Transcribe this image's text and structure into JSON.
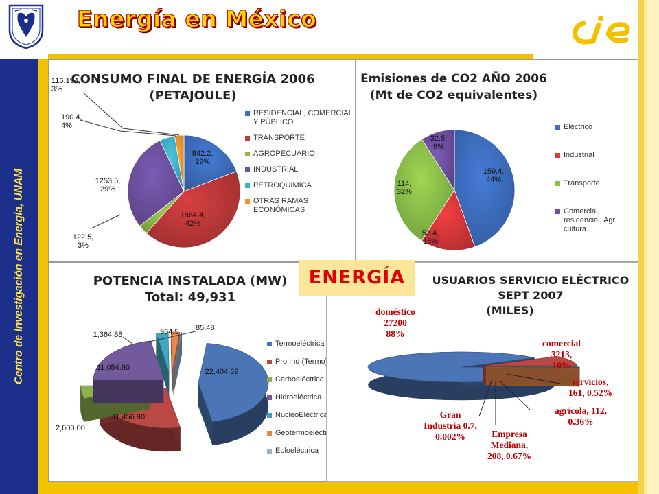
{
  "slide": {
    "title": "Energía en México",
    "side_text": "Centro de Investigación en Energía, UNAM",
    "badge": "ENERGÍA"
  },
  "colors": {
    "navy": "#1c2f8a",
    "gold": "#f2c200",
    "title_red": "#b20000"
  },
  "chart_data": [
    {
      "id": "consumo",
      "type": "pie",
      "title": "CONSUMO FINAL DE ENERGÍA 2006",
      "subtitle": "(PETAJOULE)",
      "legend_position": "right",
      "slices": [
        {
          "name": "RESIDENCIAL, COMERCIAL Y PÚBLICO",
          "value": 842.2,
          "label": "842.2,\n19%",
          "color": "#3e6fc1"
        },
        {
          "name": "TRANSPORTE",
          "value": 1864.4,
          "label": "1864.4,\n42%",
          "color": "#c0393b"
        },
        {
          "name": "AGROPECUARIO",
          "value": 122.5,
          "label": "122.5,\n3%",
          "color": "#8cb849"
        },
        {
          "name": "INDUSTRIAL",
          "value": 1253.5,
          "label": "1253.5,\n29%",
          "color": "#6f51a1"
        },
        {
          "name": "PETROQUIMICA",
          "value": 190.4,
          "label": "190.4,\n4%",
          "color": "#3fb2c9"
        },
        {
          "name": "OTRAS RAMAS ECONÓMICAS",
          "value": 116.194,
          "label": "116.194,\n3%",
          "color": "#f09532"
        }
      ]
    },
    {
      "id": "emisiones",
      "type": "pie",
      "title": "Emisiones de CO2  AÑO 2006",
      "subtitle": "(Mt de CO2 equivalentes)",
      "legend_position": "right",
      "slices": [
        {
          "name": "Eléctrico",
          "value": 159.4,
          "label": "159.4,\n44%",
          "color": "#3e6fc1"
        },
        {
          "name": "Industrial",
          "value": 52.4,
          "label": "52.4,\n15%",
          "color": "#d9383a"
        },
        {
          "name": "Transporte",
          "value": 114,
          "label": "114,\n32%",
          "color": "#8cc04a"
        },
        {
          "name": "Comercial, residencial, Agri cultura",
          "value": 32.5,
          "label": "32.5,\n9%",
          "color": "#7050a4"
        }
      ]
    },
    {
      "id": "potencia",
      "type": "pie",
      "title": "POTENCIA INSTALADA (MW)",
      "subtitle": "Total: 49,931",
      "legend_position": "right",
      "slices": [
        {
          "name": "Termoeléctrica",
          "value": 22404.69,
          "label": "22,404.69",
          "color": "#4a73b3"
        },
        {
          "name": "Pro Ind (Termo)",
          "value": 11456.9,
          "label": "11,456.90",
          "color": "#b64744"
        },
        {
          "name": "Carboeléctrica",
          "value": 2600.0,
          "label": "2,600.00",
          "color": "#8cac4f"
        },
        {
          "name": "Hidroeléctrica",
          "value": 11054.9,
          "label": "11,054.90",
          "color": "#71589a"
        },
        {
          "name": "NucleoEléctrica",
          "value": 1364.88,
          "label": "1,364.88",
          "color": "#3fa2bb"
        },
        {
          "name": "Geotermoeléctrica",
          "value": 964.5,
          "label": "964.5",
          "color": "#e2874a"
        },
        {
          "name": "Eoloeléctrica",
          "value": 85.48,
          "label": "85.48",
          "color": "#98b1d4"
        }
      ]
    },
    {
      "id": "usuarios",
      "type": "pie",
      "title": "USUARIOS SERVICIO ELÉCTRICO",
      "subtitle": "SEPT 2007",
      "unit": "(MILES)",
      "slices": [
        {
          "name": "doméstico",
          "value": 27200,
          "label": "doméstico\n27200\n88%",
          "color": "#4a73b3"
        },
        {
          "name": "comercial",
          "value": 3213,
          "label": "comercial\n3213,\n10%",
          "color": "#b64744"
        },
        {
          "name": "servicios",
          "value": 161,
          "label": "servicios,\n161, 0.52%",
          "color": "#8cac4f"
        },
        {
          "name": "agrícola",
          "value": 112,
          "label": "agrícola, 112,\n0.36%",
          "color": "#71589a"
        },
        {
          "name": "Empresa Mediana",
          "value": 208,
          "label": "Empresa\nMediana,\n208, 0.67%",
          "color": "#3fa2bb"
        },
        {
          "name": "Gran Industria",
          "value": 0.7,
          "label": "Gran\nIndustria 0.7,\n0.002%",
          "color": "#e2874a"
        }
      ]
    }
  ]
}
